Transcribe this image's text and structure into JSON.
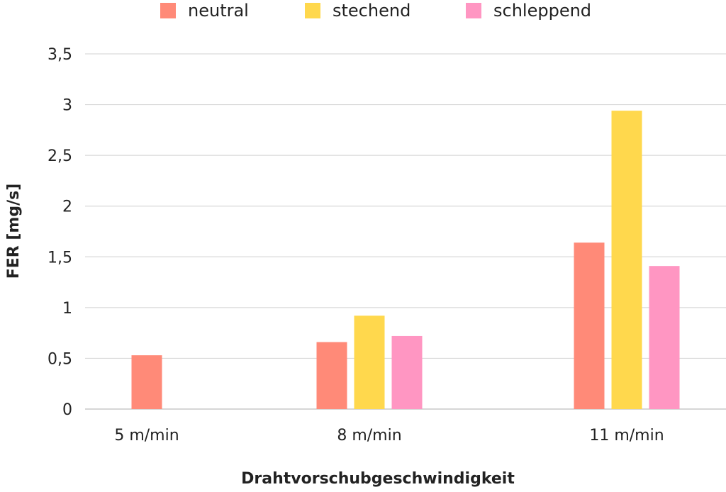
{
  "chart_data": {
    "type": "bar",
    "categories": [
      "5 m/min",
      "8 m/min",
      "11 m/min"
    ],
    "series": [
      {
        "name": "neutral",
        "color": "#ff8a78",
        "values": [
          0.53,
          0.66,
          1.64
        ]
      },
      {
        "name": "stechend",
        "color": "#ffd84d",
        "values": [
          null,
          0.92,
          2.94
        ]
      },
      {
        "name": "schleppend",
        "color": "#ff96c2",
        "values": [
          null,
          0.72,
          1.41
        ]
      }
    ],
    "xlabel": "Drahtvorschubgeschwindigkeit",
    "ylabel": "FER [mg/s]",
    "ylim": [
      0,
      3.5
    ],
    "yticks": [
      "0",
      "0,5",
      "1",
      "1,5",
      "2",
      "2,5",
      "3",
      "3,5"
    ],
    "grid": true,
    "legend_position": "top"
  }
}
